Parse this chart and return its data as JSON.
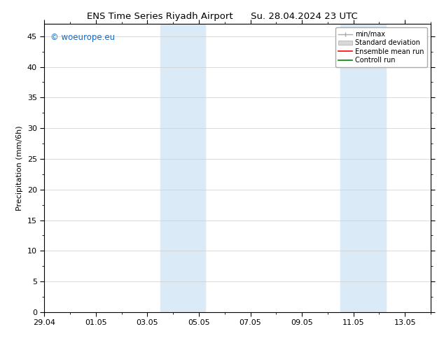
{
  "title_left": "ENS Time Series Riyadh Airport",
  "title_right": "Su. 28.04.2024 23 UTC",
  "ylabel": "Precipitation (mm/6h)",
  "ylim": [
    0,
    47
  ],
  "yticks": [
    0,
    5,
    10,
    15,
    20,
    25,
    30,
    35,
    40,
    45
  ],
  "xlim": [
    0,
    15
  ],
  "xtick_labels": [
    "29.04",
    "01.05",
    "03.05",
    "05.05",
    "07.05",
    "09.05",
    "11.05",
    "13.05"
  ],
  "xtick_positions": [
    0,
    2,
    4,
    6,
    8,
    10,
    12,
    14
  ],
  "shaded_bands": [
    {
      "start": 4.5,
      "end": 6.25
    },
    {
      "start": 11.5,
      "end": 13.25
    }
  ],
  "shaded_color": "#daeaf7",
  "watermark_text": "© woeurope.eu",
  "watermark_color": "#1a6abf",
  "bg_color": "#ffffff",
  "grid_color": "#cccccc",
  "font_size": 8,
  "title_font_size": 9.5
}
